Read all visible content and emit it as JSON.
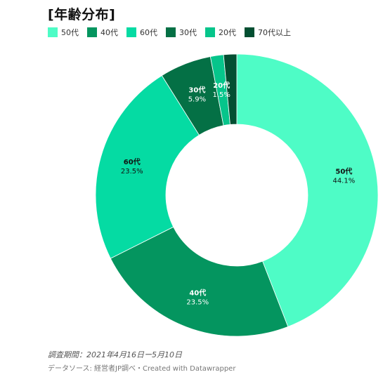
{
  "title": "[年齢分布]",
  "chart_data": {
    "type": "pie",
    "series": [
      {
        "name": "50代",
        "value": 44.1,
        "label": "44.1%",
        "color": "#4efcc6"
      },
      {
        "name": "40代",
        "value": 23.5,
        "label": "23.5%",
        "color": "#04955f"
      },
      {
        "name": "60代",
        "value": 23.5,
        "label": "23.5%",
        "color": "#05dba3"
      },
      {
        "name": "30代",
        "value": 5.9,
        "label": "5.9%",
        "color": "#047045"
      },
      {
        "name": "20代",
        "value": 1.5,
        "label": "1.5%",
        "color": "#06c58b"
      },
      {
        "name": "70代以上",
        "value": 1.5,
        "label": "",
        "color": "#034f32"
      }
    ],
    "legend": [
      "50代",
      "40代",
      "60代",
      "30代",
      "20代",
      "70代以上"
    ],
    "legend_position": "top-left",
    "donut": true
  },
  "footer": {
    "date_note": "調査期間：2021年4月16日ー5月10日",
    "source": "データソース: 経営者JP調べ・Created with Datawrapper"
  }
}
